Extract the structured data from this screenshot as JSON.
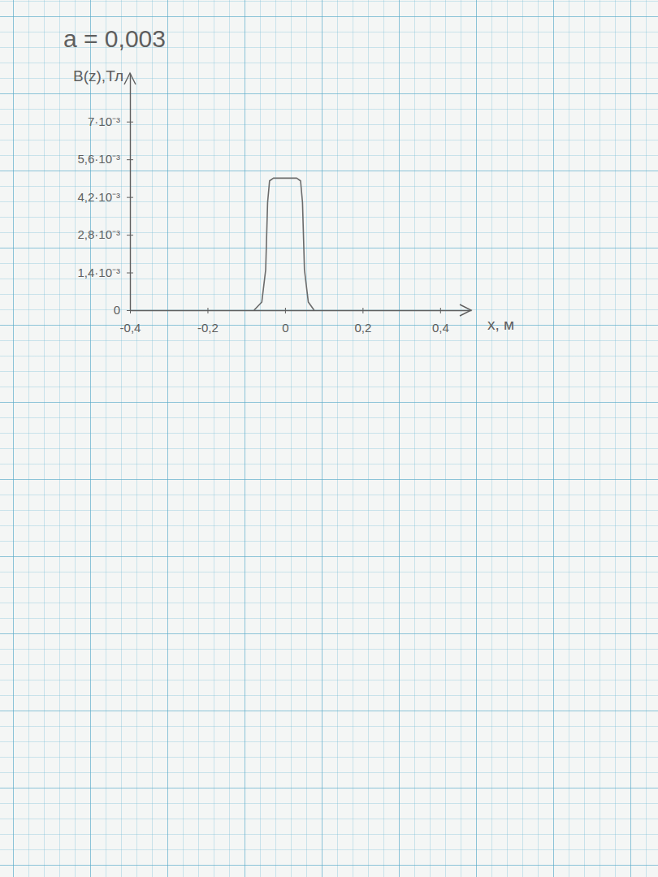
{
  "chart_data": {
    "type": "line",
    "title": "a = 0,003",
    "y_label": "B(z),Тл",
    "x_label": "x, м",
    "x": [
      -0.08,
      -0.06,
      -0.05,
      -0.045,
      -0.04,
      -0.03,
      0,
      0.03,
      0.04,
      0.045,
      0.05,
      0.06,
      0.075
    ],
    "values": [
      0,
      0.0003,
      0.0015,
      0.004,
      0.0048,
      0.0049,
      0.0049,
      0.0049,
      0.0048,
      0.004,
      0.0015,
      0.0003,
      0
    ],
    "color": "#6b6b6b",
    "xlim": [
      -0.4,
      0.48
    ],
    "xticks": [
      {
        "value": -0.4,
        "label": "-0,4"
      },
      {
        "value": -0.2,
        "label": "-0,2"
      },
      0,
      {
        "value": 0.2,
        "label": "0,2"
      },
      {
        "value": 0.4,
        "label": "0,4"
      }
    ],
    "ylim": [
      0,
      0.0088
    ],
    "yticks": [
      0,
      {
        "value": 0.0014,
        "label": "1,4·10⁻³"
      },
      {
        "value": 0.0028,
        "label": "2,8·10⁻³"
      },
      {
        "value": 0.0042,
        "label": "4,2·10⁻³"
      },
      {
        "value": 0.0056,
        "label": "5,6·10⁻³"
      },
      {
        "value": 0.007,
        "label": "7·10⁻³"
      }
    ],
    "grid": false
  }
}
